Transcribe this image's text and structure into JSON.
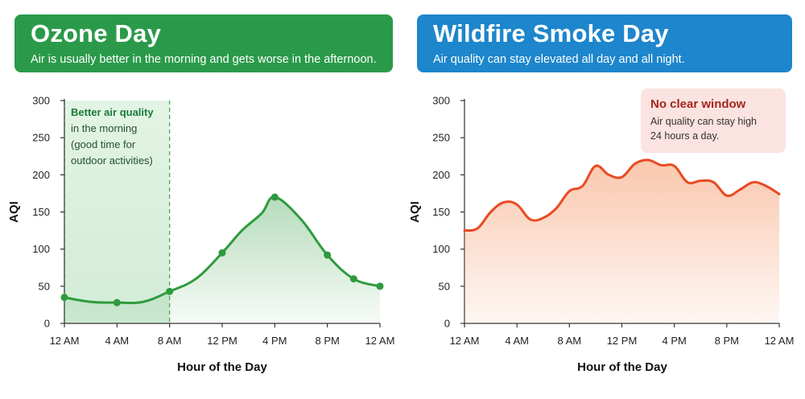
{
  "panels": [
    {
      "title": "Ozone Day",
      "subtitle": "Air is usually better in the morning and gets worse in the afternoon.",
      "header_color": "#2a9a4a"
    },
    {
      "title": "Wildfire Smoke Day",
      "subtitle": "Air quality can stay elevated all day and all night.",
      "header_color": "#1d86cc"
    }
  ],
  "callout": {
    "lines": [
      "Better air quality",
      "in the morning",
      "(good time for",
      "outdoor activities)"
    ]
  },
  "note": {
    "title": "No clear window",
    "body_line1": "Air quality can stay high",
    "body_line2": "24 hours a day."
  },
  "chart_data": [
    {
      "type": "area",
      "title": "Ozone Day",
      "xlabel": "Hour of the Day",
      "ylabel": "AQI",
      "xlim": [
        0,
        24
      ],
      "ylim": [
        0,
        300
      ],
      "y_ticks": [
        0,
        50,
        100,
        150,
        200,
        250,
        300
      ],
      "x_ticks": [
        0,
        4,
        8,
        12,
        16,
        20,
        24
      ],
      "x_tick_labels": [
        "12 AM",
        "4 AM",
        "8 AM",
        "12 PM",
        "4 PM",
        "8 PM",
        "12 AM"
      ],
      "line_color": "#2e9a3e",
      "fill_color": "#2e9a3e",
      "highlight_range": [
        0,
        8
      ],
      "highlight_color": "#d9f0dc",
      "series": [
        {
          "x": [
            0,
            2,
            4,
            6,
            8,
            10,
            12,
            13.5,
            15,
            16,
            18,
            20,
            22,
            24
          ],
          "y": [
            35,
            29,
            28,
            29,
            43,
            60,
            95,
            125,
            148,
            170,
            140,
            92,
            60,
            50
          ]
        }
      ],
      "markers_x": [
        0,
        4,
        8,
        12,
        16,
        20,
        22,
        24
      ]
    },
    {
      "type": "area",
      "title": "Wildfire Smoke Day",
      "xlabel": "Hour of the Day",
      "ylabel": "AQI",
      "xlim": [
        0,
        24
      ],
      "ylim": [
        0,
        300
      ],
      "y_ticks": [
        0,
        50,
        100,
        150,
        200,
        250,
        300
      ],
      "x_ticks": [
        0,
        4,
        8,
        12,
        16,
        20,
        24
      ],
      "x_tick_labels": [
        "12 AM",
        "4 AM",
        "8 AM",
        "12 PM",
        "4 PM",
        "8 PM",
        "12 AM"
      ],
      "line_color": "#e84a22",
      "fill_color": "#f59a6b",
      "series": [
        {
          "x": [
            0,
            1,
            2,
            3,
            4,
            5,
            6,
            7,
            8,
            9,
            10,
            11,
            12,
            13,
            14,
            15,
            16,
            17,
            18,
            19,
            20,
            21,
            22,
            23,
            24
          ],
          "y": [
            125,
            128,
            150,
            163,
            160,
            140,
            142,
            155,
            178,
            185,
            212,
            200,
            197,
            215,
            220,
            213,
            212,
            190,
            192,
            190,
            172,
            180,
            190,
            185,
            174
          ]
        }
      ]
    }
  ]
}
